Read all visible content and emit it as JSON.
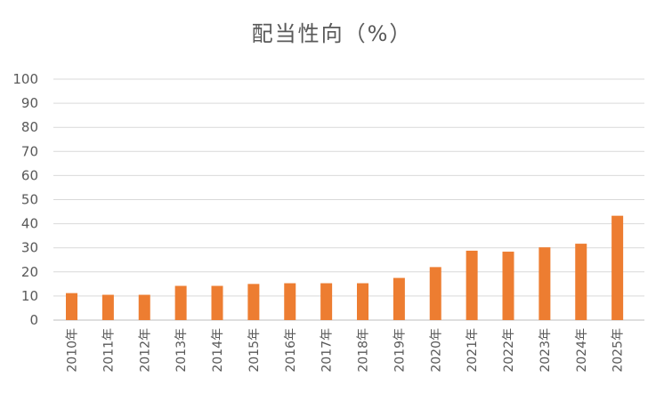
{
  "chart_data": {
    "type": "bar",
    "title": "配当性向（%）",
    "xlabel": "",
    "ylabel": "",
    "ylim": [
      0,
      100
    ],
    "yticks": [
      0,
      10,
      20,
      30,
      40,
      50,
      60,
      70,
      80,
      90,
      100
    ],
    "categories": [
      "2010年",
      "2011年",
      "2012年",
      "2013年",
      "2014年",
      "2015年",
      "2016年",
      "2017年",
      "2018年",
      "2019年",
      "2020年",
      "2021年",
      "2022年",
      "2023年",
      "2024年",
      "2025年"
    ],
    "values": [
      11.2,
      10.5,
      10.5,
      14.2,
      14.2,
      15.0,
      15.3,
      15.3,
      15.3,
      17.5,
      22.0,
      28.8,
      28.4,
      30.2,
      31.7,
      43.3
    ],
    "bar_color": "#ED7D31",
    "grid": true,
    "legend": "none"
  }
}
